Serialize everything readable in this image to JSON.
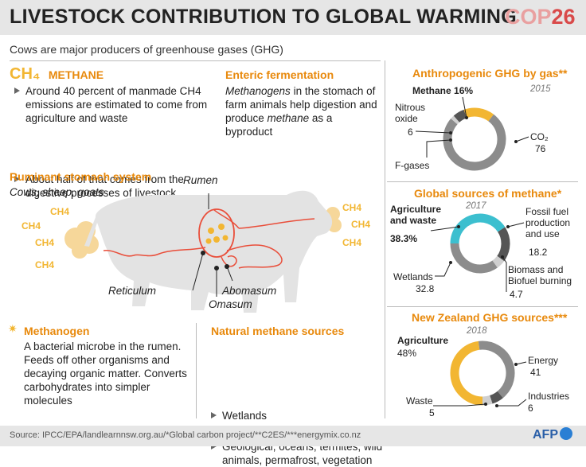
{
  "header": {
    "title": "LIVESTOCK CONTRIBUTION TO GLOBAL WARMING",
    "cop_prefix": "COP",
    "cop_number": "26",
    "subtitle": "Cows are major producers of greenhouse gases (GHG)"
  },
  "methane": {
    "symbol": "CH₄",
    "heading": "METHANE",
    "bullets": [
      "Around 40 percent of manmade CH4 emissions are estimated to come from agriculture and waste",
      "About half of that comes from the digestive processes of livestock"
    ]
  },
  "enteric": {
    "heading": "Enteric fermentation",
    "text_italic_1": "Methanogens",
    "text_1": " in the stomach of farm animals help digestion and produce ",
    "text_italic_2": "methane",
    "text_2": " as a byproduct"
  },
  "ruminant": {
    "heading": "Ruminant stomach system",
    "subheading": "Cows, sheep, goats",
    "labels": {
      "rumen": "Rumen",
      "reticulum": "Reticulum",
      "abomasum": "Abomasum",
      "omasum": "Omasum"
    },
    "ch4_label": "CH4"
  },
  "methanogen": {
    "heading": "Methanogen",
    "text": "A bacterial microbe in the rumen. Feeds off other organisms and decaying organic matter. Converts carbohydrates into simpler molecules"
  },
  "natural": {
    "heading": "Natural methane sources",
    "bullets": [
      "Wetlands",
      "Geological, oceans, termites, wild animals, permafrost, vegetation"
    ]
  },
  "charts": [
    {
      "type": "pie",
      "title": "Anthropogenic GHG by gas**",
      "year": "2015",
      "slices": [
        {
          "label": "Methane",
          "value": 16,
          "display": "16%",
          "color": "#f2b632"
        },
        {
          "label": "CO₂",
          "value": 76,
          "display": "76",
          "color": "#8c8c8c"
        },
        {
          "label": "F-gases",
          "value": 2,
          "display": "",
          "color": "#cfcfcf"
        },
        {
          "label": "Nitrous oxide",
          "value": 6,
          "display": "6",
          "color": "#555555"
        }
      ]
    },
    {
      "type": "pie",
      "title": "Global sources of methane*",
      "year": "2017",
      "slices": [
        {
          "label": "Agriculture and waste",
          "value": 38.3,
          "display": "38.3%",
          "color": "#3cbfcf"
        },
        {
          "label": "Fossil fuel production and use",
          "value": 18.2,
          "display": "18.2",
          "color": "#555555"
        },
        {
          "label": "Biomass and Biofuel burning",
          "value": 4.7,
          "display": "4.7",
          "color": "#cfcfcf"
        },
        {
          "label": "Wetlands",
          "value": 32.8,
          "display": "32.8",
          "color": "#8c8c8c"
        }
      ]
    },
    {
      "type": "pie",
      "title": "New Zealand GHG sources***",
      "year": "2018",
      "slices": [
        {
          "label": "Agriculture",
          "value": 48,
          "display": "48%",
          "color": "#f2b632"
        },
        {
          "label": "Energy",
          "value": 41,
          "display": "41",
          "color": "#8c8c8c"
        },
        {
          "label": "Industries",
          "value": 6,
          "display": "6",
          "color": "#555555"
        },
        {
          "label": "Waste",
          "value": 5,
          "display": "5",
          "color": "#cfcfcf"
        }
      ]
    }
  ],
  "footer": {
    "source": "Source: IPCC/EPA/landlearnnsw.org.au/*Global carbon project/**C2ES/***energymix.co.nz",
    "logo": "AFP"
  }
}
